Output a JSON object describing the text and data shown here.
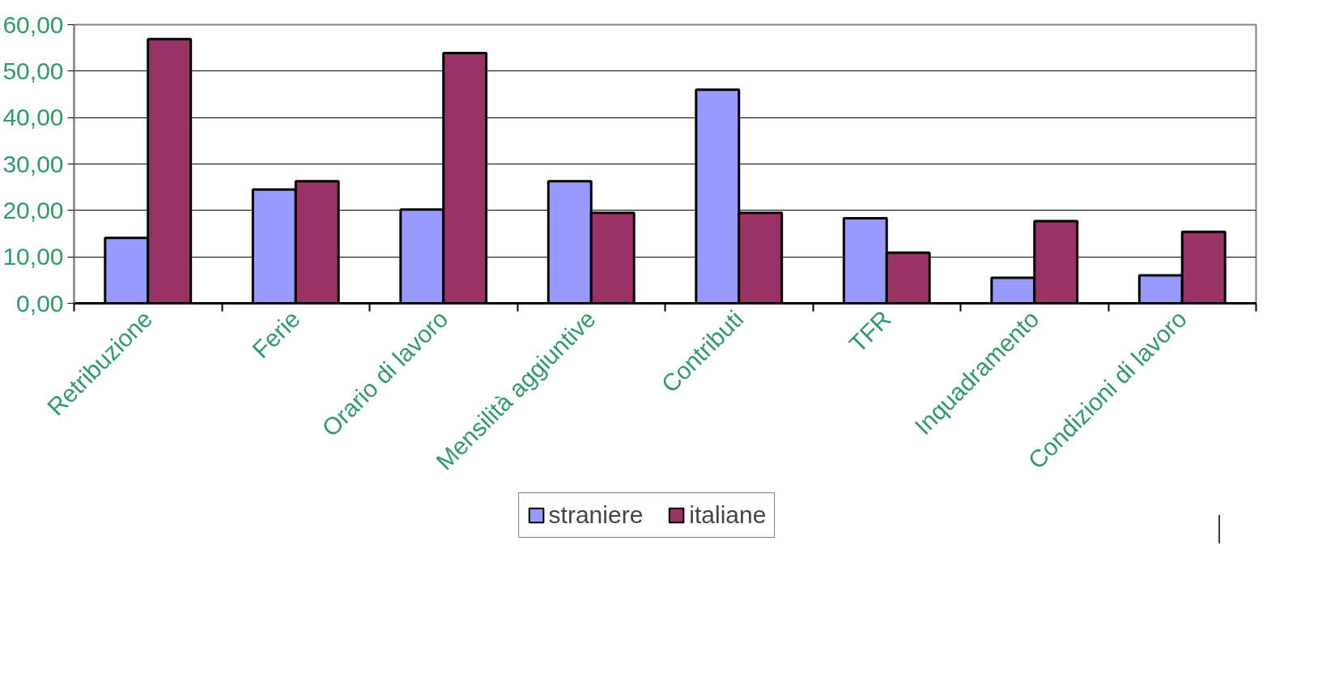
{
  "chart_data": {
    "type": "bar",
    "categories": [
      "Retribuzione",
      "Ferie",
      "Orario di lavoro",
      "Mensilità aggiuntive",
      "Contributi",
      "TFR",
      "Inquadramento",
      "Condizioni di lavoro"
    ],
    "series": [
      {
        "name": "straniere",
        "color": "#9999ff",
        "values": [
          14.1,
          24.5,
          20.2,
          26.3,
          46.0,
          18.3,
          5.5,
          6.0
        ]
      },
      {
        "name": "italiane",
        "color": "#993366",
        "values": [
          56.9,
          26.3,
          53.9,
          19.5,
          19.5,
          10.9,
          17.7,
          15.4
        ]
      }
    ],
    "ylim": [
      0,
      60
    ],
    "yticks": [
      {
        "value": 0,
        "label": "0,00"
      },
      {
        "value": 10,
        "label": "10,00"
      },
      {
        "value": 20,
        "label": "20,00"
      },
      {
        "value": 30,
        "label": "30,00"
      },
      {
        "value": 40,
        "label": "40,00"
      },
      {
        "value": 50,
        "label": "50,00"
      },
      {
        "value": 60,
        "label": "60,00"
      }
    ],
    "grid": "y",
    "legend": "bottom"
  }
}
